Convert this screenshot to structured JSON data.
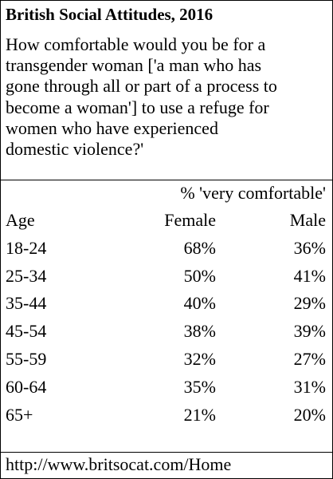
{
  "header": {
    "title": "British Social Attitudes, 2016",
    "question": [
      "How comfortable would you be for a",
      "transgender woman ['a man who has",
      "gone through all or part of a process to",
      "become a woman'] to use a refuge for",
      "women who have experienced",
      "domestic violence?'"
    ]
  },
  "table": {
    "measure": "% 'very comfortable'",
    "columns": [
      "Age",
      "Female",
      "Male"
    ],
    "rows": [
      [
        "18-24",
        "68%",
        "36%"
      ],
      [
        "25-34",
        "50%",
        "41%"
      ],
      [
        "35-44",
        "40%",
        "29%"
      ],
      [
        "45-54",
        "38%",
        "39%"
      ],
      [
        "55-59",
        "32%",
        "27%"
      ],
      [
        "60-64",
        "35%",
        "31%"
      ],
      [
        "65+",
        "21%",
        "20%"
      ]
    ]
  },
  "footer": {
    "source": "http://www.britsocat.com/Home"
  }
}
